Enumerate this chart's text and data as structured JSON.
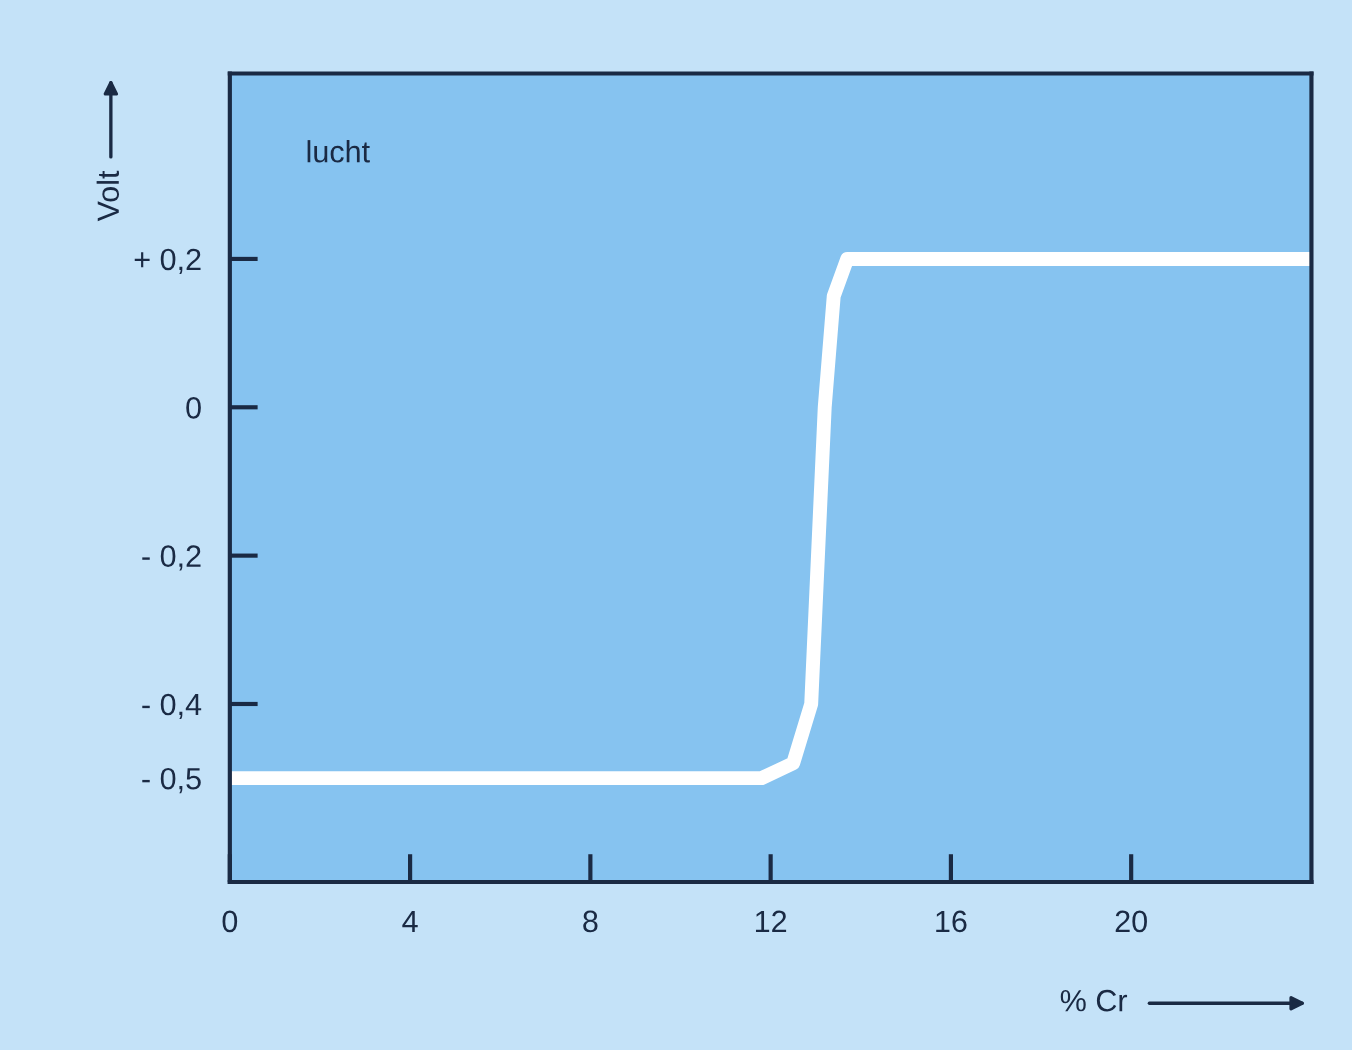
{
  "chart_data": {
    "type": "line",
    "xlabel": "% Cr",
    "ylabel": "Volt",
    "x": [
      0,
      11.8,
      12.5,
      12.9,
      13.2,
      13.4,
      13.7,
      24
    ],
    "series": [
      {
        "color": "#ffffff",
        "values": [
          -0.5,
          -0.5,
          -0.48,
          -0.4,
          0.0,
          0.15,
          0.2,
          0.2
        ]
      }
    ],
    "xlim": [
      0,
      24
    ],
    "ylim": [
      -0.64,
      0.45
    ],
    "xticks": [
      0,
      4,
      8,
      12,
      16,
      20
    ],
    "yticks": [
      {
        "value": 0.2,
        "label": "+ 0,2"
      },
      {
        "value": 0,
        "label": "0"
      },
      {
        "value": -0.2,
        "label": "- 0,2"
      },
      {
        "value": -0.4,
        "label": "- 0,4"
      },
      {
        "value": -0.5,
        "label": "- 0,5"
      }
    ],
    "annotations": [
      "lucht"
    ],
    "grid": false,
    "marker": "none",
    "line_style": "solid"
  }
}
